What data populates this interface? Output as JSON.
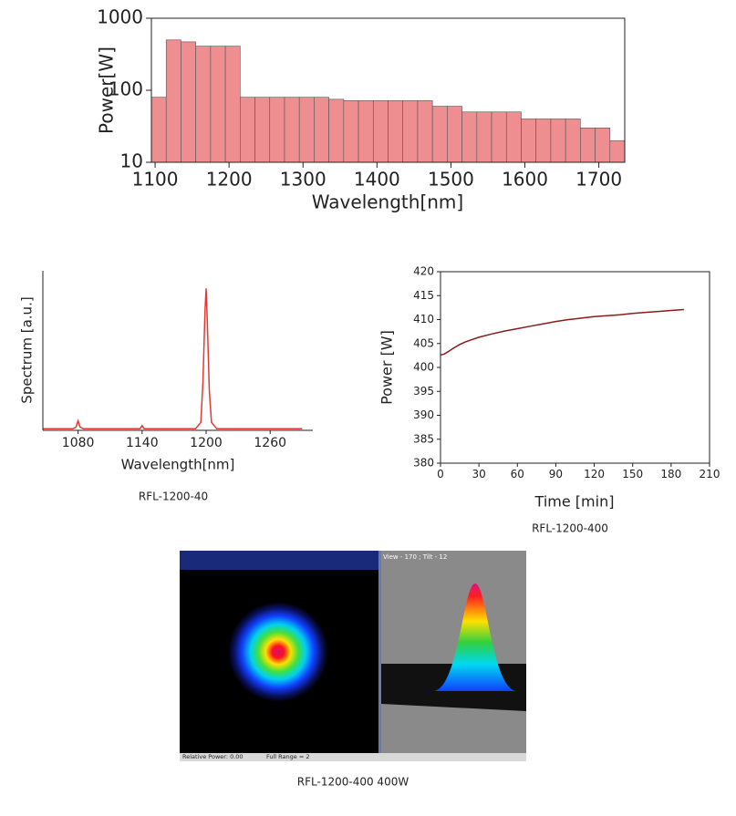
{
  "chart_data": [
    {
      "type": "histogram",
      "y_label": "Power[W]",
      "x_label": "Wavelength[nm]",
      "color": "#ef8e90",
      "log_y": true,
      "bins": [
        1095,
        1115,
        1135,
        1155,
        1175,
        1195,
        1215,
        1235,
        1255,
        1275,
        1295,
        1315,
        1335,
        1355,
        1375,
        1395,
        1415,
        1435,
        1455,
        1475,
        1495,
        1515,
        1535,
        1555,
        1575,
        1595,
        1615,
        1635,
        1655,
        1675,
        1695,
        1715,
        1735
      ],
      "values": [
        80,
        500,
        470,
        410,
        410,
        410,
        80,
        80,
        80,
        80,
        80,
        80,
        75,
        72,
        72,
        72,
        72,
        72,
        72,
        60,
        60,
        50,
        50,
        50,
        50,
        40,
        40,
        40,
        40,
        30,
        30,
        20
      ],
      "xlim": [
        1095,
        1735
      ],
      "xticks": [
        1100,
        1200,
        1300,
        1400,
        1500,
        1600,
        1700
      ],
      "ylim": [
        10,
        1000
      ],
      "yticks": [
        10,
        100,
        1000
      ]
    },
    {
      "type": "line",
      "y_label": "Spectrum [a.u.]",
      "x_label": "Wavelength[nm]",
      "caption": "RFL-1200-40",
      "color": "#e23a33",
      "x": [
        1047,
        1075,
        1078,
        1080,
        1082,
        1085,
        1138,
        1140,
        1142,
        1190,
        1195,
        1197,
        1199,
        1200,
        1201,
        1203,
        1205,
        1210,
        1290
      ],
      "values": [
        0.01,
        0.01,
        0.02,
        0.06,
        0.02,
        0.01,
        0.01,
        0.03,
        0.01,
        0.01,
        0.05,
        0.3,
        0.75,
        0.89,
        0.7,
        0.25,
        0.05,
        0.01,
        0.01
      ],
      "xlim": [
        1047,
        1300
      ],
      "xticks": [
        1080,
        1140,
        1200,
        1260
      ],
      "ylim": [
        0,
        1
      ]
    },
    {
      "type": "line",
      "y_label": "Power [W]",
      "x_label": "Time [min]",
      "caption": "RFL-1200-400",
      "color": "#8b1c1c",
      "x": [
        0,
        3,
        6,
        10,
        15,
        20,
        30,
        40,
        50,
        60,
        70,
        80,
        90,
        100,
        110,
        120,
        130,
        140,
        150,
        160,
        170,
        180,
        190
      ],
      "values": [
        402.6,
        402.8,
        403.3,
        404.0,
        404.8,
        405.4,
        406.3,
        407.0,
        407.6,
        408.1,
        408.6,
        409.1,
        409.6,
        410.0,
        410.3,
        410.6,
        410.8,
        411.0,
        411.3,
        411.5,
        411.7,
        411.9,
        412.1
      ],
      "xlim": [
        0,
        210
      ],
      "xticks": [
        0,
        30,
        60,
        90,
        120,
        150,
        180,
        210
      ],
      "ylim": [
        380,
        420
      ],
      "yticks": [
        380,
        385,
        390,
        395,
        400,
        405,
        410,
        415,
        420
      ]
    }
  ],
  "beam_profile": {
    "view_label": "View - 170 ; Tilt - 12",
    "relative_power": "Relative Power: 0.00",
    "full_range": "Full Range = 2",
    "caption": "RFL-1200-400 400W"
  }
}
